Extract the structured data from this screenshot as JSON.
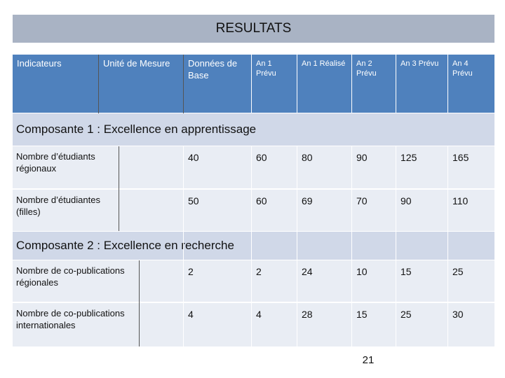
{
  "title": "RESULTATS",
  "page_number": "21",
  "columns": {
    "indicateurs": "Indicateurs",
    "unite": "Unité de Mesure",
    "base": "Données de Base",
    "an1_prevu": "An 1 Prévu",
    "an1_realise": "An 1 Réalisé",
    "an2_prevu": "An 2 Prévu",
    "an3_prevu": "An 3 Prévu",
    "an4_prevu": "An 4 Prévu"
  },
  "sections": [
    {
      "title": "Composante 1 : Excellence en apprentissage",
      "rows": [
        {
          "label": "Nombre d’étudiants régionaux",
          "unit": "",
          "base": "40",
          "an1_prevu": "60",
          "an1_realise": "80",
          "an2_prevu": "90",
          "an3_prevu": "125",
          "an4_prevu": "165"
        },
        {
          "label": "Nombre d’étudiantes (filles)",
          "unit": "",
          "base": "50",
          "an1_prevu": "60",
          "an1_realise": "69",
          "an2_prevu": "70",
          "an3_prevu": "90",
          "an4_prevu": "110"
        }
      ]
    },
    {
      "title": "Composante 2 : Excellence en recherche",
      "rows": [
        {
          "label": "Nombre de co-publications régionales",
          "unit": "",
          "base": "2",
          "an1_prevu": "2",
          "an1_realise": "24",
          "an2_prevu": "10",
          "an3_prevu": "15",
          "an4_prevu": "25"
        },
        {
          "label": "Nombre de co-publications internationales",
          "unit": "",
          "base": "4",
          "an1_prevu": "4",
          "an1_realise": "28",
          "an2_prevu": "15",
          "an3_prevu": "25",
          "an4_prevu": "30"
        }
      ]
    }
  ],
  "colors": {
    "title_bar": "#a9b3c4",
    "header": "#4f81bd",
    "section_band": "#d0d8e8",
    "data_row": "#e9edf4"
  }
}
